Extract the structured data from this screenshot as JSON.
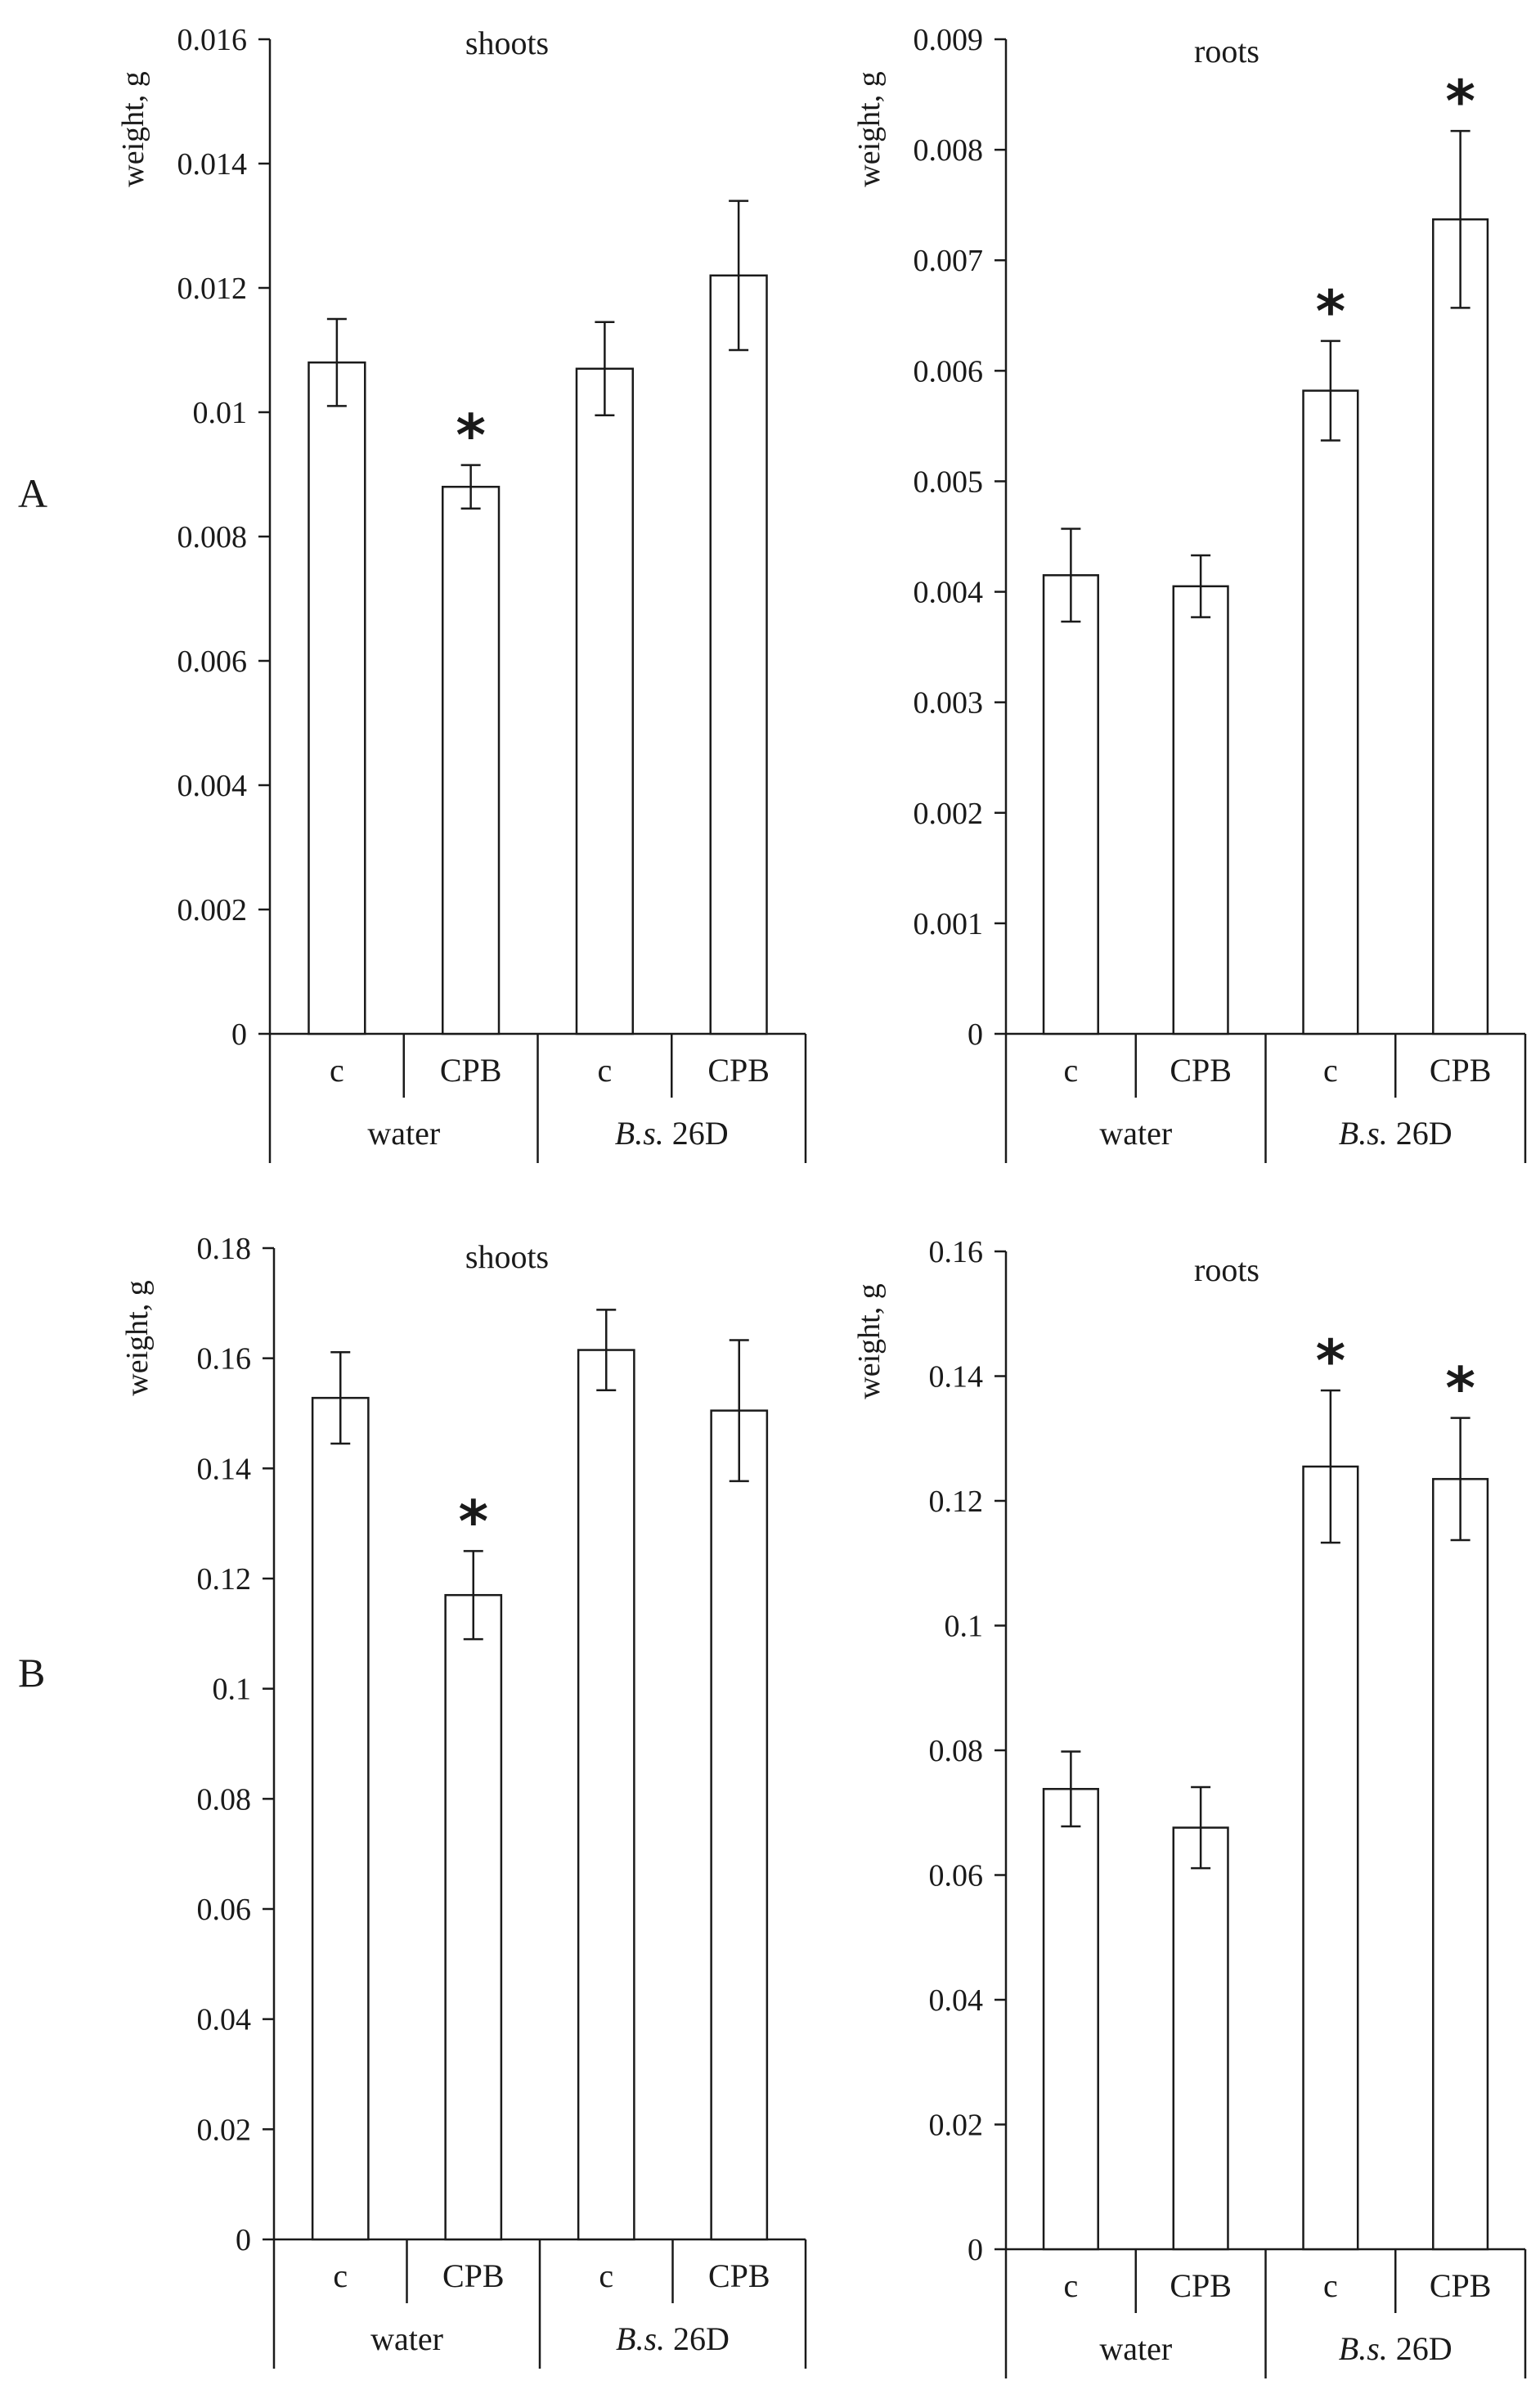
{
  "panel_labels": {
    "a": "A",
    "b": "B"
  },
  "chart_data": [
    {
      "type": "bar",
      "panel": "A",
      "title": "shoots",
      "ylabel": "weight, g",
      "xlabel": "",
      "ylim": [
        0,
        0.016
      ],
      "yticks": [
        "0",
        "0.002",
        "0.004",
        "0.006",
        "0.008",
        "0.01",
        "0.012",
        "0.014",
        "0.016"
      ],
      "yticks_values": [
        0,
        0.002,
        0.004,
        0.006,
        0.008,
        0.01,
        0.012,
        0.014,
        0.016
      ],
      "categories": [
        "c",
        "CPB",
        "c",
        "CPB"
      ],
      "groups": [
        "water",
        "B.s. 26D"
      ],
      "values": [
        0.0108,
        0.0088,
        0.0107,
        0.0122
      ],
      "errors": [
        0.0007,
        0.00035,
        0.00075,
        0.0012
      ],
      "significant": [
        false,
        true,
        false,
        false
      ]
    },
    {
      "type": "bar",
      "panel": "A",
      "title": "roots",
      "ylabel": "weight, g",
      "xlabel": "",
      "ylim": [
        0,
        0.009
      ],
      "yticks": [
        "0",
        "0.001",
        "0.002",
        "0.003",
        "0.004",
        "0.005",
        "0.006",
        "0.007",
        "0.008",
        "0.009"
      ],
      "yticks_values": [
        0,
        0.001,
        0.002,
        0.003,
        0.004,
        0.005,
        0.006,
        0.007,
        0.008,
        0.009
      ],
      "categories": [
        "c",
        "CPB",
        "c",
        "CPB"
      ],
      "groups": [
        "water",
        "B.s. 26D"
      ],
      "values": [
        0.00415,
        0.00405,
        0.00582,
        0.00737
      ],
      "errors": [
        0.00042,
        0.00028,
        0.00045,
        0.0008
      ],
      "significant": [
        false,
        false,
        true,
        true
      ]
    },
    {
      "type": "bar",
      "panel": "B",
      "title": "shoots",
      "ylabel": "weight, g",
      "xlabel": "",
      "ylim": [
        0,
        0.18
      ],
      "yticks": [
        "0",
        "0.02",
        "0.04",
        "0.06",
        "0.08",
        "0.1",
        "0.12",
        "0.14",
        "0.16",
        "0.18"
      ],
      "yticks_values": [
        0,
        0.02,
        0.04,
        0.06,
        0.08,
        0.1,
        0.12,
        0.14,
        0.16,
        0.18
      ],
      "categories": [
        "c",
        "CPB",
        "c",
        "CPB"
      ],
      "groups": [
        "water",
        "B.s. 26D"
      ],
      "values": [
        0.1528,
        0.117,
        0.1615,
        0.1505
      ],
      "errors": [
        0.0083,
        0.008,
        0.0073,
        0.0128
      ],
      "significant": [
        false,
        true,
        false,
        false
      ]
    },
    {
      "type": "bar",
      "panel": "B",
      "title": "roots",
      "ylabel": "weight, g",
      "xlabel": "",
      "ylim": [
        0,
        0.16
      ],
      "yticks": [
        "0",
        "0.02",
        "0.04",
        "0.06",
        "0.08",
        "0.1",
        "0.12",
        "0.14",
        "0.16"
      ],
      "yticks_values": [
        0,
        0.02,
        0.04,
        0.06,
        0.08,
        0.1,
        0.12,
        0.14,
        0.16
      ],
      "categories": [
        "c",
        "CPB",
        "c",
        "CPB"
      ],
      "groups": [
        "water",
        "B.s. 26D"
      ],
      "values": [
        0.0738,
        0.0676,
        0.1255,
        0.1235
      ],
      "errors": [
        0.006,
        0.0065,
        0.0122,
        0.0098
      ],
      "significant": [
        false,
        false,
        true,
        true
      ]
    }
  ],
  "colors": {
    "ink": "#1a1a1a",
    "bar_fill": "#ffffff",
    "background": "#ffffff"
  },
  "significance_marker": "*"
}
